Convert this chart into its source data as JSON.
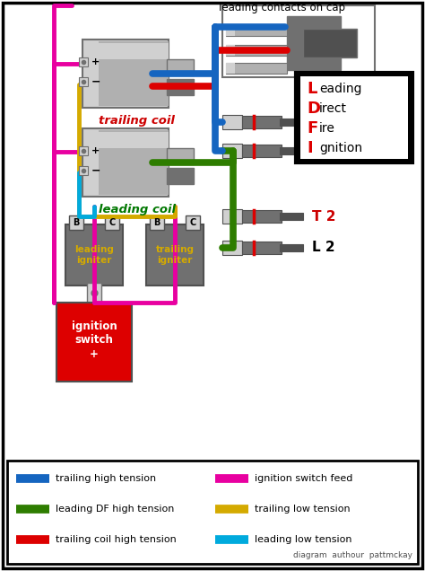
{
  "bg_color": "#ffffff",
  "colors": {
    "blue": "#1565C0",
    "green": "#2E7D00",
    "red": "#DD0000",
    "magenta": "#E800A0",
    "yellow": "#D4AA00",
    "cyan": "#00AADD",
    "dark_gray": "#505050",
    "mid_gray": "#707070",
    "light_gray": "#B0B0B0",
    "lighter_gray": "#D0D0D0",
    "black": "#000000",
    "white": "#FFFFFF",
    "red_label": "#CC0000",
    "green_label": "#007700"
  },
  "legend_items_left": [
    {
      "color": "#1565C0",
      "label": "trailing high tension"
    },
    {
      "color": "#2E7D00",
      "label": "leading DF high tension"
    },
    {
      "color": "#DD0000",
      "label": "trailing coil high tension"
    }
  ],
  "legend_items_right": [
    {
      "color": "#E800A0",
      "label": "ignition switch feed"
    },
    {
      "color": "#D4AA00",
      "label": "trailing low tension"
    },
    {
      "color": "#00AADD",
      "label": "leading low tension"
    }
  ],
  "footer_text": "diagram  authour  pattmckay",
  "ldfi_lines": [
    {
      "letter": "L",
      "rest": "eading",
      "letter_color": "#DD0000"
    },
    {
      "letter": "D",
      "rest": "irect",
      "letter_color": "#DD0000"
    },
    {
      "letter": "F",
      "rest": "ire",
      "letter_color": "#DD0000"
    },
    {
      "letter": "I",
      "rest": "gnition",
      "letter_color": "#DD0000"
    }
  ]
}
